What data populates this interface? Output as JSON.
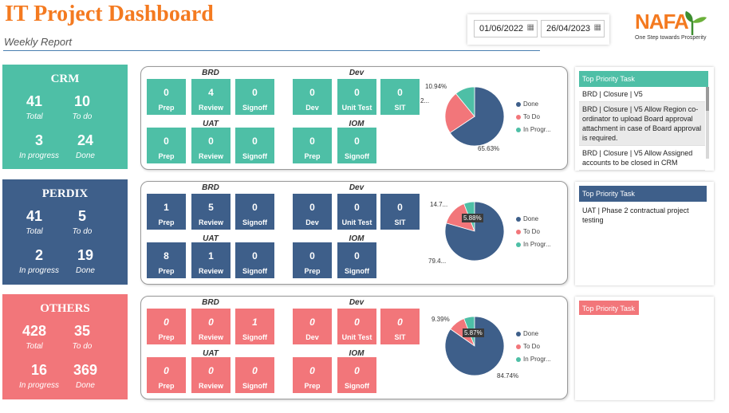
{
  "header": {
    "title": "IT Project Dashboard",
    "subtitle": "Weekly Report",
    "date_from": "01/06/2022",
    "date_to": "26/04/2023",
    "logo_text": "NAFA",
    "logo_tagline": "One Step towards Prosperity"
  },
  "colors": {
    "crm": "#4ebfa6",
    "perdix": "#3e5f8a",
    "others": "#f2767a",
    "done": "#3e5f8a",
    "todo": "#f2767a",
    "inprog": "#4ebfa6",
    "orange": "#f47a20"
  },
  "sections": [
    {
      "name": "CRM",
      "total": "41",
      "total_label": "Total",
      "todo": "10",
      "todo_label": "To do",
      "inprog": "3",
      "inprog_label": "In progress",
      "done": "24",
      "done_label": "Done",
      "brd": {
        "label": "BRD",
        "prep": "0",
        "review": "4",
        "signoff": "0"
      },
      "dev": {
        "label": "Dev",
        "dev": "0",
        "unit": "0",
        "sit": "0"
      },
      "uat": {
        "label": "UAT",
        "prep": "0",
        "review": "0",
        "signoff": "0"
      },
      "iom": {
        "label": "IOM",
        "prep": "0",
        "signoff": "0"
      },
      "tile_labels": {
        "prep": "Prep",
        "review": "Review",
        "signoff": "Signoff",
        "dev": "Dev",
        "unit": "Unit Test",
        "sit": "SIT"
      },
      "pie": {
        "done_label": "65.63%",
        "todo_label": "2...",
        "inprog_label": "10.94%",
        "done": 65.63,
        "todo": 23.43,
        "inprog": 10.94
      },
      "legend": [
        "Done",
        "To Do",
        "In Progr..."
      ],
      "priority_title": "Top Priority Task",
      "priority_items": [
        "BRD | Closure | V5",
        "BRD | Closure | V5 Allow Region co-ordinator to upload Board approval attachment in case of Board approval is required.",
        "BRD | Closure | V5 Allow Assigned accounts to be closed in CRM"
      ]
    },
    {
      "name": "PERDIX",
      "total": "41",
      "total_label": "Total",
      "todo": "5",
      "todo_label": "To do",
      "inprog": "2",
      "inprog_label": "In progress",
      "done": "19",
      "done_label": "Done",
      "brd": {
        "label": "BRD",
        "prep": "1",
        "review": "5",
        "signoff": "0"
      },
      "dev": {
        "label": "Dev",
        "dev": "0",
        "unit": "0",
        "sit": "0"
      },
      "uat": {
        "label": "UAT",
        "prep": "8",
        "review": "1",
        "signoff": "0"
      },
      "iom": {
        "label": "IOM",
        "prep": "0",
        "signoff": "0"
      },
      "tile_labels": {
        "prep": "Prep",
        "review": "Review",
        "signoff": "Signoff",
        "dev": "Dev",
        "unit": "Unit Test",
        "sit": "SIT"
      },
      "pie": {
        "done_label": "79.4...",
        "todo_label": "14.7...",
        "inprog_label": "5.88%",
        "done": 79.41,
        "todo": 14.71,
        "inprog": 5.88
      },
      "legend": [
        "Done",
        "To Do",
        "In Progr..."
      ],
      "priority_title": "Top Priority Task",
      "priority_items": [
        "UAT | Phase 2 contractual project testing"
      ]
    },
    {
      "name": "OTHERS",
      "total": "428",
      "total_label": "Total",
      "todo": "35",
      "todo_label": "To do",
      "inprog": "16",
      "inprog_label": "In progress",
      "done": "369",
      "done_label": "Done",
      "brd": {
        "label": "BRD",
        "prep": "0",
        "review": "0",
        "signoff": "1"
      },
      "dev": {
        "label": "Dev",
        "dev": "0",
        "unit": "0",
        "sit": "0"
      },
      "uat": {
        "label": "UAT",
        "prep": "0",
        "review": "0",
        "signoff": "0"
      },
      "iom": {
        "label": "IOM",
        "prep": "0",
        "signoff": "0"
      },
      "tile_labels": {
        "prep": "Prep",
        "review": "Review",
        "signoff": "Signoff",
        "dev": "Dev",
        "unit": "Unit Test",
        "sit": "SIT"
      },
      "pie": {
        "done_label": "84.74%",
        "todo_label": "9.39%",
        "inprog_label": "5.87%",
        "done": 84.74,
        "todo": 9.39,
        "inprog": 5.87
      },
      "legend": [
        "Done",
        "To Do",
        "In Progr..."
      ],
      "priority_title": "Top Priority Task",
      "priority_items": []
    }
  ]
}
